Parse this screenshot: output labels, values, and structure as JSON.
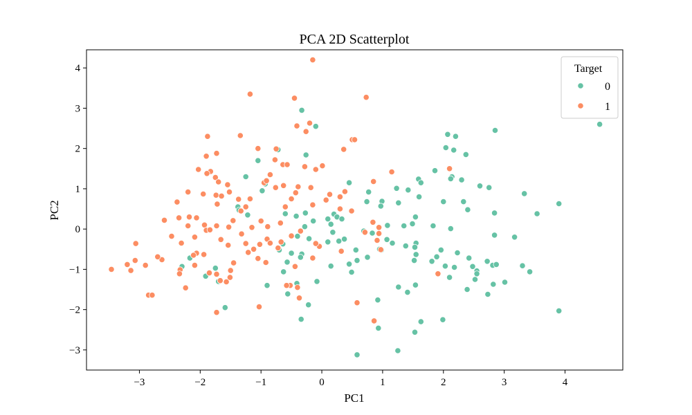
{
  "chart_data": {
    "type": "scatter",
    "title": "PCA 2D Scatterplot",
    "xlabel": "PC1",
    "ylabel": "PC2",
    "xlim": [
      -3.87,
      4.95
    ],
    "ylim": [
      -3.5,
      4.45
    ],
    "xticks": [
      -3,
      -2,
      -1,
      0,
      1,
      2,
      3,
      4
    ],
    "yticks": [
      -3,
      -2,
      -1,
      0,
      1,
      2,
      3,
      4
    ],
    "xtick_labels": [
      "−3",
      "−2",
      "−1",
      "0",
      "1",
      "2",
      "3",
      "4"
    ],
    "ytick_labels": [
      "−3",
      "−2",
      "−1",
      "0",
      "1",
      "2",
      "3",
      "4"
    ],
    "grid": false,
    "legend": {
      "title": "Target",
      "placement": "top-right"
    },
    "series": [
      {
        "name": "0",
        "color": "#66c2a5",
        "points": [
          [
            4.57,
            2.6
          ],
          [
            2.85,
            2.45
          ],
          [
            2.07,
            2.35
          ],
          [
            2.2,
            2.3
          ],
          [
            2.04,
            2.02
          ],
          [
            2.17,
            1.96
          ],
          [
            2.37,
            1.85
          ],
          [
            -0.72,
            1.97
          ],
          [
            -0.26,
            1.84
          ],
          [
            -1.05,
            1.7
          ],
          [
            -1.25,
            1.3
          ],
          [
            -0.93,
            1.12
          ],
          [
            -0.98,
            0.95
          ],
          [
            -0.1,
            2.55
          ],
          [
            -0.33,
            2.95
          ],
          [
            1.86,
            1.45
          ],
          [
            1.59,
            1.24
          ],
          [
            1.63,
            1.15
          ],
          [
            2.14,
            1.3
          ],
          [
            2.12,
            1.25
          ],
          [
            2.3,
            1.22
          ],
          [
            2.6,
            1.07
          ],
          [
            2.75,
            1.03
          ],
          [
            1.23,
            1.01
          ],
          [
            1.42,
            0.97
          ],
          [
            0.45,
            1.15
          ],
          [
            0.77,
            0.92
          ],
          [
            0.74,
            0.68
          ],
          [
            0.99,
            0.69
          ],
          [
            0.97,
            0.57
          ],
          [
            1.26,
            0.65
          ],
          [
            1.6,
            0.8
          ],
          [
            2.0,
            0.68
          ],
          [
            2.33,
            0.68
          ],
          [
            2.4,
            0.48
          ],
          [
            2.84,
            0.4
          ],
          [
            3.33,
            0.88
          ],
          [
            3.9,
            0.63
          ],
          [
            3.54,
            0.38
          ],
          [
            1.54,
            0.3
          ],
          [
            1.49,
            0.13
          ],
          [
            1.83,
            0.08
          ],
          [
            2.12,
            0.01
          ],
          [
            2.84,
            -0.15
          ],
          [
            3.17,
            -0.2
          ],
          [
            0.69,
            -0.05
          ],
          [
            0.83,
            -0.1
          ],
          [
            1.08,
            0.09
          ],
          [
            1.35,
            0.08
          ],
          [
            1.07,
            -0.26
          ],
          [
            1.16,
            -0.35
          ],
          [
            1.38,
            -0.42
          ],
          [
            1.55,
            -0.35
          ],
          [
            1.53,
            -0.45
          ],
          [
            1.55,
            -0.63
          ],
          [
            1.52,
            -0.78
          ],
          [
            1.96,
            -0.52
          ],
          [
            2.23,
            -0.59
          ],
          [
            1.81,
            -0.8
          ],
          [
            1.89,
            -0.69
          ],
          [
            2.03,
            -0.92
          ],
          [
            2.42,
            -0.72
          ],
          [
            2.48,
            -0.93
          ],
          [
            2.55,
            -1.04
          ],
          [
            2.55,
            -1.11
          ],
          [
            2.52,
            -1.25
          ],
          [
            2.72,
            -0.8
          ],
          [
            2.81,
            -0.9
          ],
          [
            2.87,
            -0.88
          ],
          [
            3.3,
            -0.91
          ],
          [
            3.42,
            -1.06
          ],
          [
            2.18,
            -0.95
          ],
          [
            2.1,
            -1.2
          ],
          [
            2.39,
            -1.5
          ],
          [
            2.73,
            -1.62
          ],
          [
            2.82,
            -1.37
          ],
          [
            3.01,
            -1.32
          ],
          [
            0.95,
            -0.5
          ],
          [
            0.98,
            -0.52
          ],
          [
            0.58,
            -0.78
          ],
          [
            0.75,
            -0.7
          ],
          [
            0.45,
            -0.87
          ],
          [
            0.49,
            -1.07
          ],
          [
            0.92,
            -1.76
          ],
          [
            0.93,
            -2.46
          ],
          [
            1.26,
            -1.44
          ],
          [
            1.41,
            -1.57
          ],
          [
            1.54,
            -1.39
          ],
          [
            1.63,
            -2.3
          ],
          [
            1.53,
            -2.56
          ],
          [
            1.99,
            -2.25
          ],
          [
            1.25,
            -3.02
          ],
          [
            0.58,
            -3.12
          ],
          [
            3.9,
            -2.03
          ],
          [
            0.2,
            0.37
          ],
          [
            0.15,
            0.12
          ],
          [
            0.1,
            0.25
          ],
          [
            0.25,
            0.3
          ],
          [
            0.33,
            0.25
          ],
          [
            0.18,
            -0.08
          ],
          [
            0.28,
            -0.3
          ],
          [
            0.37,
            -0.25
          ],
          [
            0.56,
            -0.52
          ],
          [
            0.15,
            -0.92
          ],
          [
            -0.08,
            -1.3
          ],
          [
            -0.33,
            -0.62
          ],
          [
            -0.35,
            -0.7
          ],
          [
            -0.5,
            -0.6
          ],
          [
            -0.64,
            -0.37
          ],
          [
            -0.7,
            -0.52
          ],
          [
            -0.57,
            -0.82
          ],
          [
            -0.63,
            -1.06
          ],
          [
            -0.41,
            -1.35
          ],
          [
            -0.56,
            -1.61
          ],
          [
            -0.22,
            -1.88
          ],
          [
            -0.34,
            -2.24
          ],
          [
            -0.1,
            -0.35
          ],
          [
            0.1,
            -0.32
          ],
          [
            -0.6,
            0.38
          ],
          [
            -0.42,
            0.32
          ],
          [
            -0.27,
            0.4
          ],
          [
            -0.14,
            0.2
          ],
          [
            -0.28,
            0.06
          ],
          [
            -0.21,
            -0.24
          ],
          [
            -0.4,
            -0.18
          ],
          [
            -0.9,
            -1.4
          ],
          [
            -1.59,
            -1.95
          ],
          [
            -1.7,
            -1.3
          ],
          [
            -1.75,
            -0.97
          ],
          [
            -1.91,
            -1.17
          ],
          [
            -2.17,
            -0.72
          ],
          [
            -2.3,
            -0.93
          ],
          [
            -1.38,
            0.55
          ],
          [
            -1.36,
            0.47
          ],
          [
            -1.22,
            0.35
          ]
        ]
      },
      {
        "name": "1",
        "color": "#fc8d62",
        "points": [
          [
            -0.15,
            4.2
          ],
          [
            -1.18,
            3.35
          ],
          [
            -0.45,
            3.25
          ],
          [
            0.73,
            3.27
          ],
          [
            -0.2,
            2.63
          ],
          [
            -0.26,
            2.42
          ],
          [
            -0.41,
            2.56
          ],
          [
            -1.34,
            2.32
          ],
          [
            -1.88,
            2.3
          ],
          [
            -1.9,
            1.81
          ],
          [
            -1.73,
            1.88
          ],
          [
            -2.03,
            1.48
          ],
          [
            -1.83,
            1.43
          ],
          [
            -1.89,
            1.38
          ],
          [
            -1.75,
            1.28
          ],
          [
            -1.55,
            1.1
          ],
          [
            -1.7,
            1.17
          ],
          [
            -1.52,
            0.92
          ],
          [
            -2.2,
            0.92
          ],
          [
            -1.95,
            0.87
          ],
          [
            -1.74,
            0.84
          ],
          [
            -1.65,
            0.82
          ],
          [
            -1.72,
            0.62
          ],
          [
            -2.38,
            0.67
          ],
          [
            -1.37,
            0.74
          ],
          [
            -1.18,
            0.75
          ],
          [
            -1.25,
            0.55
          ],
          [
            -1.33,
            0.45
          ],
          [
            -1.05,
            2.0
          ],
          [
            -0.75,
            1.99
          ],
          [
            -0.77,
            1.72
          ],
          [
            -0.64,
            1.6
          ],
          [
            -0.57,
            1.6
          ],
          [
            -0.28,
            1.55
          ],
          [
            -0.85,
            1.35
          ],
          [
            -0.95,
            1.15
          ],
          [
            -0.91,
            1.2
          ],
          [
            -0.76,
            1.03
          ],
          [
            -0.63,
            1.08
          ],
          [
            -0.39,
            1.05
          ],
          [
            -0.43,
            0.9
          ],
          [
            -0.18,
            1.03
          ],
          [
            0.01,
            1.57
          ],
          [
            -0.1,
            1.48
          ],
          [
            -0.5,
            0.75
          ],
          [
            -0.6,
            0.55
          ],
          [
            -0.15,
            0.6
          ],
          [
            0.07,
            0.72
          ],
          [
            0.13,
            0.86
          ],
          [
            0.3,
            0.8
          ],
          [
            0.38,
            0.93
          ],
          [
            0.3,
            0.5
          ],
          [
            0.49,
            0.45
          ],
          [
            0.36,
            1.98
          ],
          [
            0.5,
            2.22
          ],
          [
            0.54,
            2.22
          ],
          [
            0.85,
            1.18
          ],
          [
            1.15,
            1.42
          ],
          [
            2.1,
            1.5
          ],
          [
            -2.35,
            0.28
          ],
          [
            -2.18,
            0.3
          ],
          [
            -2.06,
            0.28
          ],
          [
            -2.2,
            0.08
          ],
          [
            -1.93,
            0.1
          ],
          [
            -1.73,
            0.08
          ],
          [
            -1.53,
            0.05
          ],
          [
            -1.46,
            0.21
          ],
          [
            -1.9,
            -0.03
          ],
          [
            -1.84,
            -0.02
          ],
          [
            -2.09,
            -0.2
          ],
          [
            -2.47,
            -0.18
          ],
          [
            -2.59,
            0.22
          ],
          [
            -2.31,
            -0.35
          ],
          [
            -2.06,
            -0.6
          ],
          [
            -2.11,
            -0.65
          ],
          [
            -1.94,
            -0.63
          ],
          [
            -1.66,
            -0.26
          ],
          [
            -1.54,
            -0.4
          ],
          [
            -1.21,
            -0.58
          ],
          [
            -1.02,
            -0.38
          ],
          [
            -1.12,
            -0.5
          ],
          [
            -1.32,
            -0.12
          ],
          [
            -1.25,
            -0.36
          ],
          [
            -1.15,
            0.04
          ],
          [
            -1.0,
            0.2
          ],
          [
            -0.9,
            -0.25
          ],
          [
            -0.85,
            -0.35
          ],
          [
            -0.72,
            -0.47
          ],
          [
            -0.67,
            -0.32
          ],
          [
            -0.5,
            -0.17
          ],
          [
            -0.68,
            0.15
          ],
          [
            -0.89,
            0.06
          ],
          [
            -0.35,
            -0.05
          ],
          [
            -0.04,
            -0.43
          ],
          [
            -0.1,
            -0.36
          ],
          [
            0.32,
            -0.55
          ],
          [
            -0.15,
            -0.72
          ],
          [
            -0.44,
            -0.93
          ],
          [
            -0.52,
            -1.4
          ],
          [
            -0.4,
            -1.45
          ],
          [
            -0.37,
            -1.71
          ],
          [
            -0.92,
            -0.83
          ],
          [
            -1.05,
            -0.73
          ],
          [
            -1.45,
            -0.84
          ],
          [
            -1.5,
            -1.03
          ],
          [
            -1.51,
            -1.2
          ],
          [
            -1.57,
            -1.31
          ],
          [
            -1.73,
            -1.12
          ],
          [
            -1.85,
            -1.09
          ],
          [
            -2.09,
            -0.9
          ],
          [
            -2.24,
            -1.46
          ],
          [
            -2.33,
            -1.01
          ],
          [
            -2.34,
            -1.11
          ],
          [
            -2.63,
            -0.76
          ],
          [
            -2.7,
            -0.69
          ],
          [
            -2.9,
            -0.9
          ],
          [
            -3.07,
            -0.78
          ],
          [
            -3.2,
            -0.88
          ],
          [
            -3.14,
            -1.03
          ],
          [
            -3.46,
            -1.0
          ],
          [
            -3.06,
            -0.36
          ],
          [
            -2.85,
            -1.64
          ],
          [
            -2.79,
            -1.64
          ],
          [
            -1.73,
            -2.07
          ],
          [
            -1.03,
            -1.93
          ],
          [
            -0.58,
            -1.4
          ],
          [
            0.58,
            -1.83
          ],
          [
            0.86,
            -2.28
          ],
          [
            0.97,
            -0.51
          ],
          [
            0.91,
            -0.28
          ],
          [
            0.94,
            -0.11
          ],
          [
            0.71,
            -0.08
          ],
          [
            0.84,
            0.17
          ],
          [
            0.94,
            0.04
          ],
          [
            1.91,
            -1.11
          ],
          [
            -1.67,
            -1.28
          ]
        ]
      }
    ]
  }
}
